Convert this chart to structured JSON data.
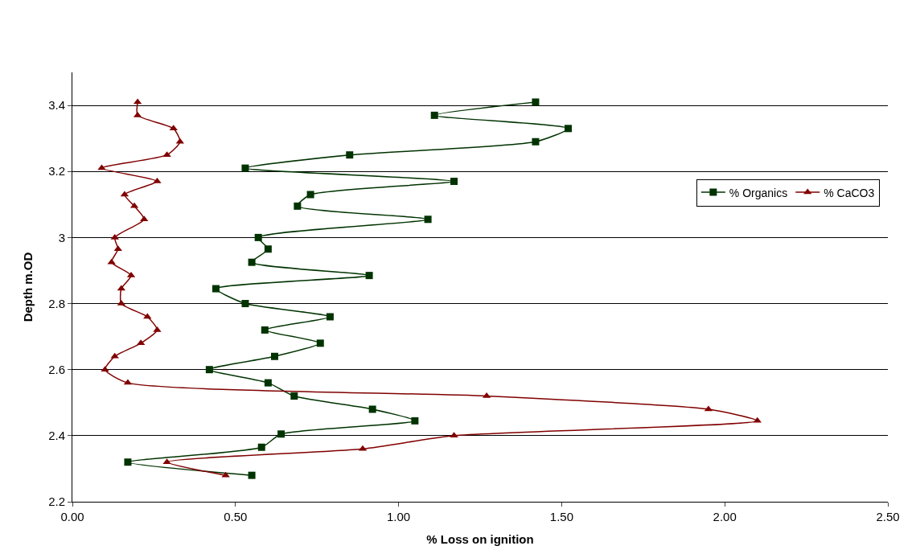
{
  "chart_data": {
    "type": "line",
    "xlabel": "% Loss on ignition",
    "ylabel": "Depth m.OD",
    "xlim": [
      0,
      2.5
    ],
    "xticks": [
      {
        "value": 0,
        "label": "0.00"
      },
      {
        "value": 0.5,
        "label": "0.50"
      },
      {
        "value": 1,
        "label": "1.00"
      },
      {
        "value": 1.5,
        "label": "1.50"
      },
      {
        "value": 2,
        "label": "2.00"
      },
      {
        "value": 2.5,
        "label": "2.50"
      }
    ],
    "ylim": [
      2.2,
      3.5
    ],
    "yticks": [
      2.2,
      2.4,
      2.6,
      2.8,
      3,
      3.2,
      3.4
    ],
    "grid": "y",
    "legend": "right",
    "series": [
      {
        "name": "% Organics",
        "color": "#003300",
        "marker": "square",
        "x": [
          1.42,
          1.11,
          1.52,
          1.42,
          0.85,
          0.53,
          1.17,
          0.73,
          0.69,
          1.09,
          0.57,
          0.6,
          0.55,
          0.91,
          0.44,
          0.53,
          0.79,
          0.59,
          0.76,
          0.62,
          0.42,
          0.6,
          0.68,
          0.92,
          1.05,
          0.64,
          0.58,
          0.17,
          0.55
        ],
        "values": [
          3.41,
          3.37,
          3.33,
          3.29,
          3.25,
          3.21,
          3.17,
          3.13,
          3.095,
          3.055,
          3.0,
          2.965,
          2.925,
          2.885,
          2.845,
          2.8,
          2.76,
          2.72,
          2.68,
          2.64,
          2.6,
          2.56,
          2.52,
          2.48,
          2.445,
          2.405,
          2.365,
          2.32,
          2.28
        ]
      },
      {
        "name": "% CaCO3",
        "color": "#800000",
        "marker": "triangle",
        "x": [
          0.2,
          0.2,
          0.31,
          0.33,
          0.29,
          0.09,
          0.26,
          0.16,
          0.19,
          0.22,
          0.13,
          0.14,
          0.12,
          0.18,
          0.15,
          0.15,
          0.23,
          0.26,
          0.21,
          0.13,
          0.1,
          0.17,
          1.27,
          1.95,
          2.1,
          1.17,
          0.89,
          0.29,
          0.47
        ],
        "values": [
          3.41,
          3.37,
          3.33,
          3.29,
          3.25,
          3.21,
          3.17,
          3.13,
          3.095,
          3.055,
          3.0,
          2.965,
          2.925,
          2.885,
          2.845,
          2.8,
          2.76,
          2.72,
          2.68,
          2.64,
          2.6,
          2.56,
          2.52,
          2.48,
          2.445,
          2.4,
          2.36,
          2.32,
          2.28
        ]
      }
    ]
  }
}
